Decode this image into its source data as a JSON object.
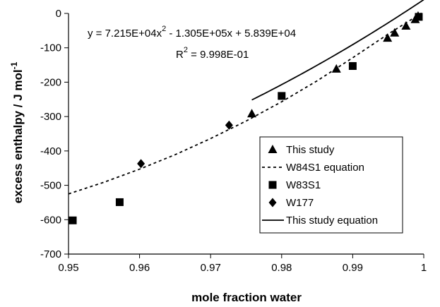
{
  "chart_data": {
    "type": "scatter",
    "xlabel": "mole fraction water",
    "ylabel": "excess enthalpy / J mol",
    "ylabel_sup": "-1",
    "xlim": [
      0.95,
      1.0
    ],
    "ylim": [
      -700,
      0
    ],
    "x_ticks": [
      0.95,
      0.96,
      0.97,
      0.98,
      0.99,
      1.0
    ],
    "x_tick_labels": [
      "0.95",
      "0.96",
      "0.97",
      "0.98",
      "0.99",
      "1"
    ],
    "y_ticks": [
      0,
      -100,
      -200,
      -300,
      -400,
      -500,
      -600,
      -700
    ],
    "y_tick_labels": [
      "0",
      "-100",
      "-200",
      "-300",
      "-400",
      "-500",
      "-600",
      "-700"
    ],
    "grid": false,
    "legend_position": "bottom-right",
    "equation": {
      "text_main": "y = 7.215E+04x",
      "text_sup": "2",
      "text_rest": " - 1.305E+05x + 5.839E+04",
      "r2_main": "R",
      "r2_sup": "2",
      "r2_rest": " = 9.998E-01"
    },
    "series": [
      {
        "name": "This study",
        "marker": "triangle",
        "points": [
          [
            0.9758,
            -292
          ],
          [
            0.9877,
            -162
          ],
          [
            0.9949,
            -72
          ],
          [
            0.9959,
            -57
          ],
          [
            0.9975,
            -37
          ],
          [
            0.9988,
            -18
          ],
          [
            0.9992,
            -8
          ]
        ]
      },
      {
        "name": "W84S1 equation",
        "style": "dashed",
        "points": [
          [
            0.95,
            -525
          ],
          [
            0.955,
            -491
          ],
          [
            0.96,
            -453
          ],
          [
            0.965,
            -411
          ],
          [
            0.97,
            -364
          ],
          [
            0.975,
            -313
          ],
          [
            0.98,
            -257
          ],
          [
            0.985,
            -196
          ],
          [
            0.99,
            -129
          ],
          [
            0.995,
            -60
          ],
          [
            1.0,
            5
          ]
        ]
      },
      {
        "name": "W83S1",
        "marker": "square",
        "points": [
          [
            0.9506,
            -602
          ],
          [
            0.9572,
            -549
          ],
          [
            0.98,
            -240
          ],
          [
            0.99,
            -153
          ],
          [
            0.9993,
            -10
          ]
        ]
      },
      {
        "name": "W177",
        "marker": "diamond",
        "points": [
          [
            0.9602,
            -437
          ],
          [
            0.9726,
            -325
          ]
        ]
      },
      {
        "name": "This study equation",
        "style": "solid",
        "fit": {
          "a": 72150,
          "b": -130500,
          "c": 58390,
          "x_from": 0.9758,
          "x_to": 1.0
        }
      }
    ]
  }
}
